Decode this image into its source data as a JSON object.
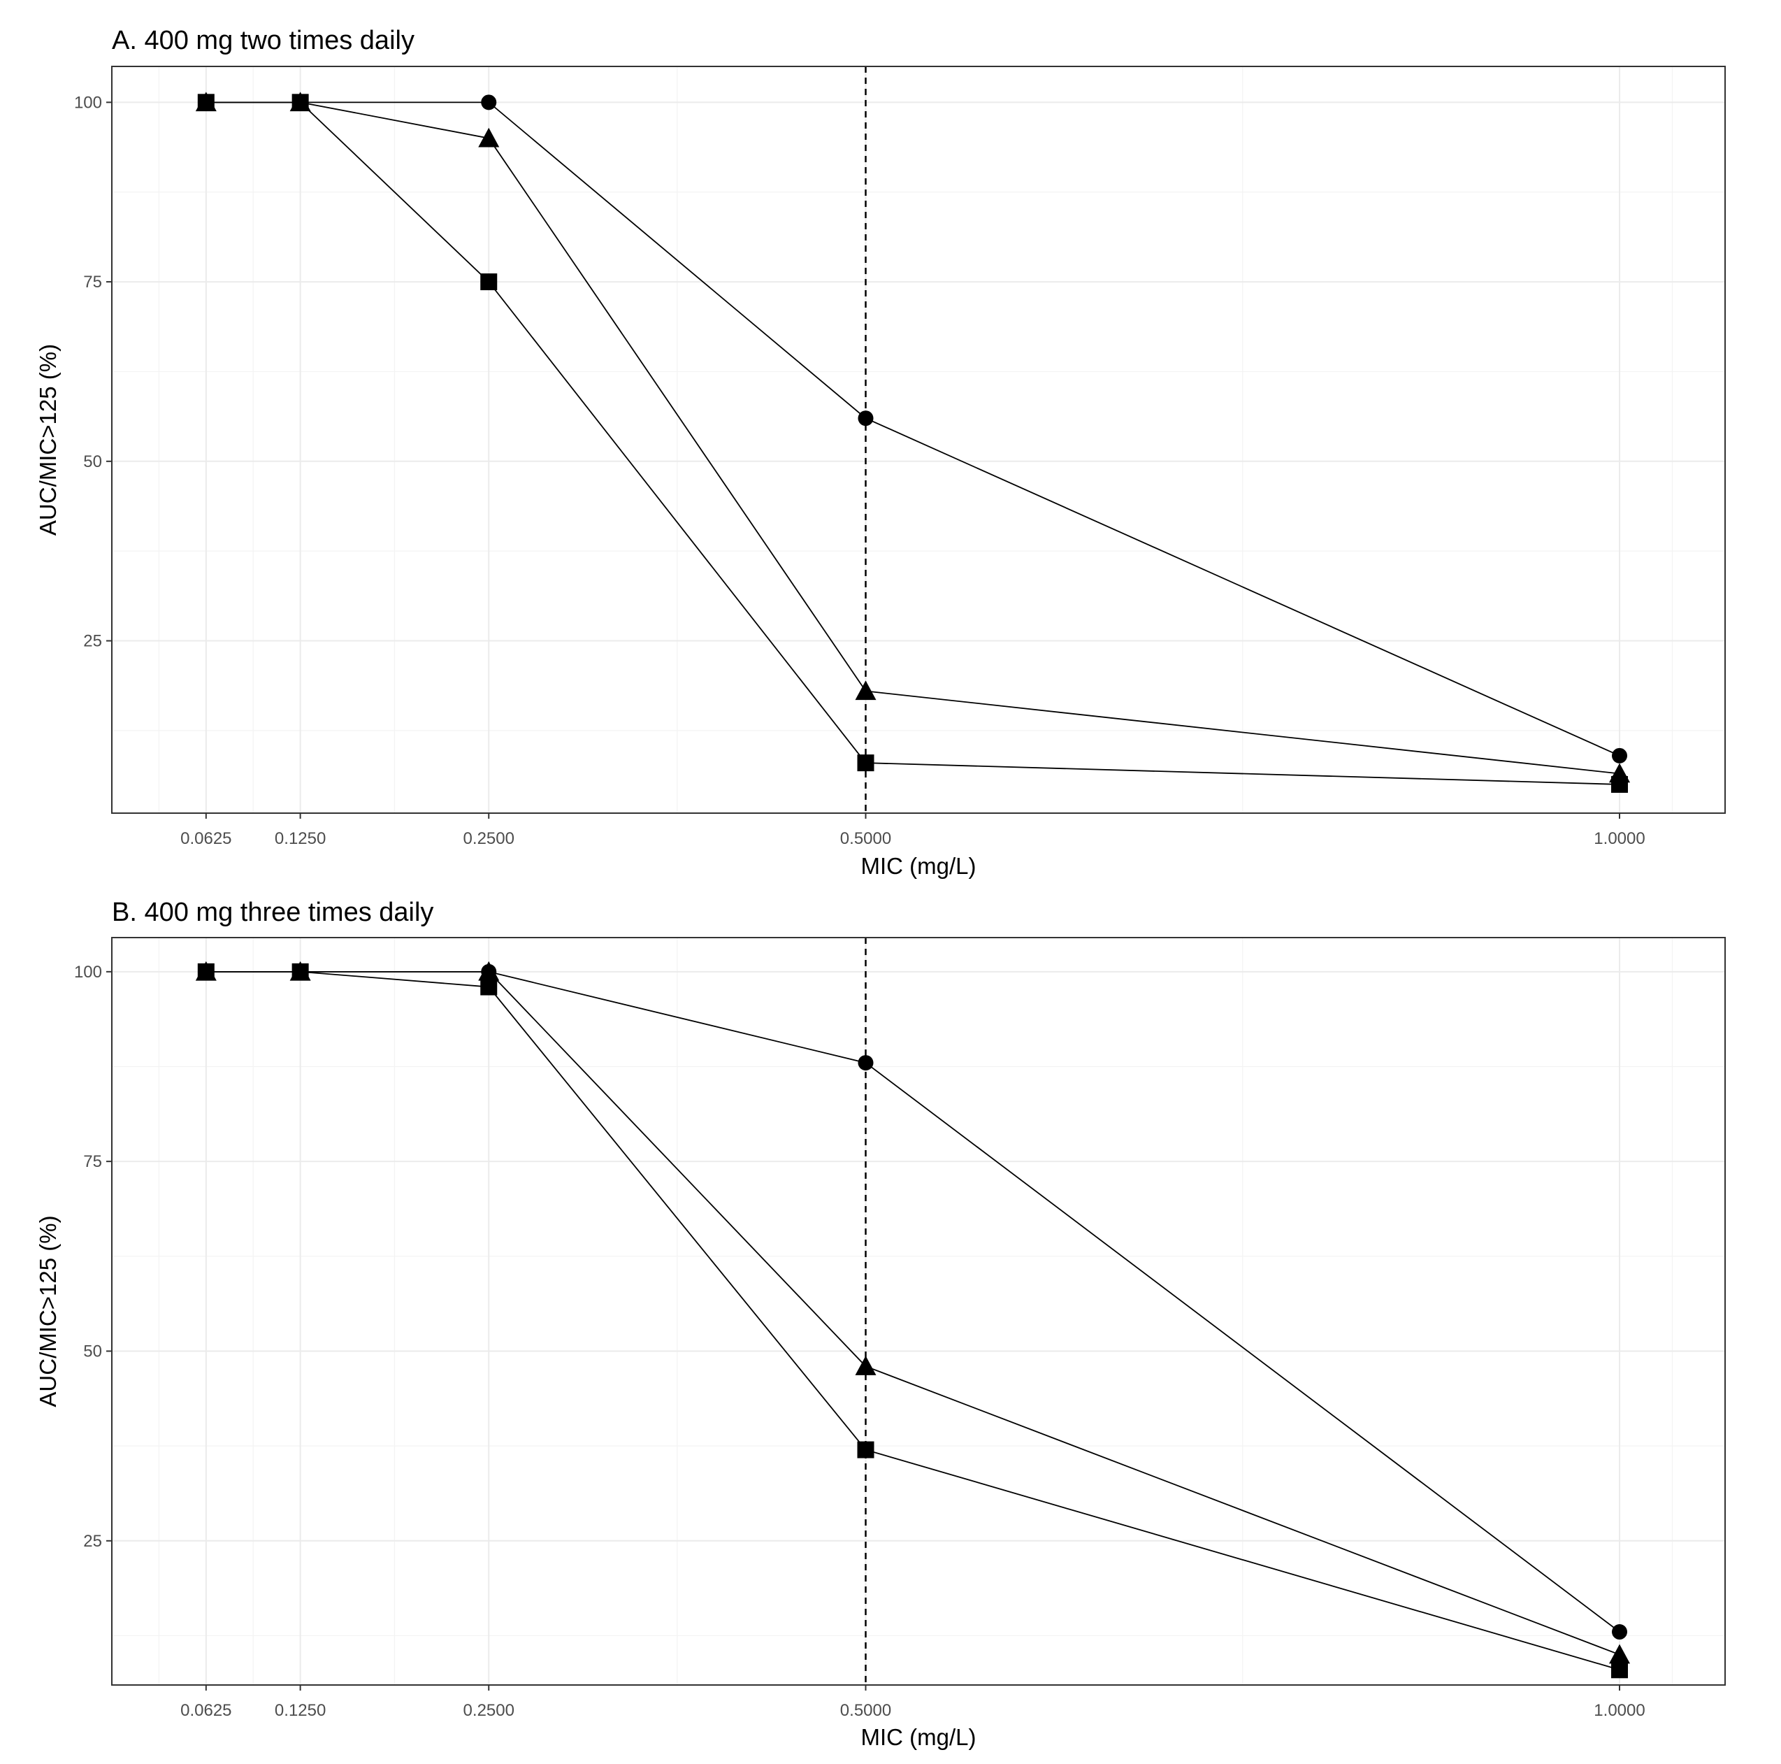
{
  "chart_data": [
    {
      "type": "line",
      "title": "A. 400 mg two times daily",
      "xlabel": "MIC (mg/L)",
      "ylabel": "AUC/MIC>125 (%)",
      "x": [
        0.0625,
        0.125,
        0.25,
        0.5,
        1.0
      ],
      "x_tick_labels": [
        "0.0625",
        "0.1250",
        "0.2500",
        "0.5000",
        "1.0000"
      ],
      "y_tick_values": [
        25,
        50,
        75,
        100
      ],
      "y_tick_labels": [
        "25",
        "50",
        "75",
        "100"
      ],
      "xlim": [
        0.0,
        1.07
      ],
      "ylim": [
        1,
        105
      ],
      "reference_line_x": 0.5,
      "grid": true,
      "series": [
        {
          "marker": "circle",
          "values": [
            100,
            100,
            100,
            56,
            9
          ]
        },
        {
          "marker": "triangle",
          "values": [
            100,
            100,
            95,
            18,
            6.5
          ]
        },
        {
          "marker": "square",
          "values": [
            100,
            100,
            75,
            8,
            5
          ]
        }
      ]
    },
    {
      "type": "line",
      "title": "B. 400 mg three times daily",
      "xlabel": "MIC (mg/L)",
      "ylabel": "AUC/MIC>125 (%)",
      "x": [
        0.0625,
        0.125,
        0.25,
        0.5,
        1.0
      ],
      "x_tick_labels": [
        "0.0625",
        "0.1250",
        "0.2500",
        "0.5000",
        "1.0000"
      ],
      "y_tick_values": [
        25,
        50,
        75,
        100
      ],
      "y_tick_labels": [
        "25",
        "50",
        "75",
        "100"
      ],
      "xlim": [
        0.0,
        1.07
      ],
      "ylim": [
        6,
        104.5
      ],
      "reference_line_x": 0.5,
      "grid": true,
      "series": [
        {
          "marker": "circle",
          "values": [
            100,
            100,
            100,
            88,
            13
          ]
        },
        {
          "marker": "triangle",
          "values": [
            100,
            100,
            100,
            48,
            10
          ]
        },
        {
          "marker": "square",
          "values": [
            100,
            100,
            98,
            37,
            8
          ]
        }
      ]
    }
  ]
}
